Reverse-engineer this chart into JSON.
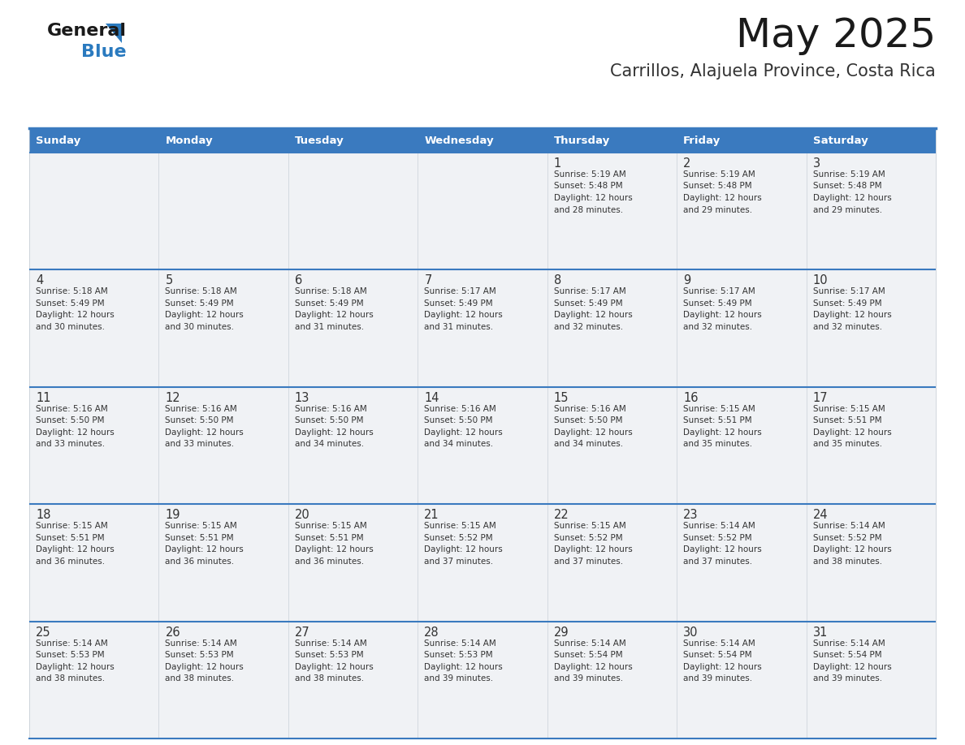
{
  "title": "May 2025",
  "subtitle": "Carrillos, Alajuela Province, Costa Rica",
  "header_color": "#3a7abf",
  "header_text_color": "#ffffff",
  "cell_bg_color": "#f0f2f5",
  "border_color": "#3a7abf",
  "row_border_color": "#4a86c8",
  "text_color": "#333333",
  "days_of_week": [
    "Sunday",
    "Monday",
    "Tuesday",
    "Wednesday",
    "Thursday",
    "Friday",
    "Saturday"
  ],
  "weeks": [
    [
      {
        "day": null,
        "sunrise": null,
        "sunset": null,
        "daylight": null
      },
      {
        "day": null,
        "sunrise": null,
        "sunset": null,
        "daylight": null
      },
      {
        "day": null,
        "sunrise": null,
        "sunset": null,
        "daylight": null
      },
      {
        "day": null,
        "sunrise": null,
        "sunset": null,
        "daylight": null
      },
      {
        "day": 1,
        "sunrise": "5:19 AM",
        "sunset": "5:48 PM",
        "daylight": "12 hours and 28 minutes."
      },
      {
        "day": 2,
        "sunrise": "5:19 AM",
        "sunset": "5:48 PM",
        "daylight": "12 hours and 29 minutes."
      },
      {
        "day": 3,
        "sunrise": "5:19 AM",
        "sunset": "5:48 PM",
        "daylight": "12 hours and 29 minutes."
      }
    ],
    [
      {
        "day": 4,
        "sunrise": "5:18 AM",
        "sunset": "5:49 PM",
        "daylight": "12 hours and 30 minutes."
      },
      {
        "day": 5,
        "sunrise": "5:18 AM",
        "sunset": "5:49 PM",
        "daylight": "12 hours and 30 minutes."
      },
      {
        "day": 6,
        "sunrise": "5:18 AM",
        "sunset": "5:49 PM",
        "daylight": "12 hours and 31 minutes."
      },
      {
        "day": 7,
        "sunrise": "5:17 AM",
        "sunset": "5:49 PM",
        "daylight": "12 hours and 31 minutes."
      },
      {
        "day": 8,
        "sunrise": "5:17 AM",
        "sunset": "5:49 PM",
        "daylight": "12 hours and 32 minutes."
      },
      {
        "day": 9,
        "sunrise": "5:17 AM",
        "sunset": "5:49 PM",
        "daylight": "12 hours and 32 minutes."
      },
      {
        "day": 10,
        "sunrise": "5:17 AM",
        "sunset": "5:49 PM",
        "daylight": "12 hours and 32 minutes."
      }
    ],
    [
      {
        "day": 11,
        "sunrise": "5:16 AM",
        "sunset": "5:50 PM",
        "daylight": "12 hours and 33 minutes."
      },
      {
        "day": 12,
        "sunrise": "5:16 AM",
        "sunset": "5:50 PM",
        "daylight": "12 hours and 33 minutes."
      },
      {
        "day": 13,
        "sunrise": "5:16 AM",
        "sunset": "5:50 PM",
        "daylight": "12 hours and 34 minutes."
      },
      {
        "day": 14,
        "sunrise": "5:16 AM",
        "sunset": "5:50 PM",
        "daylight": "12 hours and 34 minutes."
      },
      {
        "day": 15,
        "sunrise": "5:16 AM",
        "sunset": "5:50 PM",
        "daylight": "12 hours and 34 minutes."
      },
      {
        "day": 16,
        "sunrise": "5:15 AM",
        "sunset": "5:51 PM",
        "daylight": "12 hours and 35 minutes."
      },
      {
        "day": 17,
        "sunrise": "5:15 AM",
        "sunset": "5:51 PM",
        "daylight": "12 hours and 35 minutes."
      }
    ],
    [
      {
        "day": 18,
        "sunrise": "5:15 AM",
        "sunset": "5:51 PM",
        "daylight": "12 hours and 36 minutes."
      },
      {
        "day": 19,
        "sunrise": "5:15 AM",
        "sunset": "5:51 PM",
        "daylight": "12 hours and 36 minutes."
      },
      {
        "day": 20,
        "sunrise": "5:15 AM",
        "sunset": "5:51 PM",
        "daylight": "12 hours and 36 minutes."
      },
      {
        "day": 21,
        "sunrise": "5:15 AM",
        "sunset": "5:52 PM",
        "daylight": "12 hours and 37 minutes."
      },
      {
        "day": 22,
        "sunrise": "5:15 AM",
        "sunset": "5:52 PM",
        "daylight": "12 hours and 37 minutes."
      },
      {
        "day": 23,
        "sunrise": "5:14 AM",
        "sunset": "5:52 PM",
        "daylight": "12 hours and 37 minutes."
      },
      {
        "day": 24,
        "sunrise": "5:14 AM",
        "sunset": "5:52 PM",
        "daylight": "12 hours and 38 minutes."
      }
    ],
    [
      {
        "day": 25,
        "sunrise": "5:14 AM",
        "sunset": "5:53 PM",
        "daylight": "12 hours and 38 minutes."
      },
      {
        "day": 26,
        "sunrise": "5:14 AM",
        "sunset": "5:53 PM",
        "daylight": "12 hours and 38 minutes."
      },
      {
        "day": 27,
        "sunrise": "5:14 AM",
        "sunset": "5:53 PM",
        "daylight": "12 hours and 38 minutes."
      },
      {
        "day": 28,
        "sunrise": "5:14 AM",
        "sunset": "5:53 PM",
        "daylight": "12 hours and 39 minutes."
      },
      {
        "day": 29,
        "sunrise": "5:14 AM",
        "sunset": "5:54 PM",
        "daylight": "12 hours and 39 minutes."
      },
      {
        "day": 30,
        "sunrise": "5:14 AM",
        "sunset": "5:54 PM",
        "daylight": "12 hours and 39 minutes."
      },
      {
        "day": 31,
        "sunrise": "5:14 AM",
        "sunset": "5:54 PM",
        "daylight": "12 hours and 39 minutes."
      }
    ]
  ],
  "logo_text_general": "General",
  "logo_text_blue": "Blue",
  "logo_color_general": "#1a1a1a",
  "logo_color_blue": "#2a7abf",
  "logo_triangle_color": "#2a7abf"
}
